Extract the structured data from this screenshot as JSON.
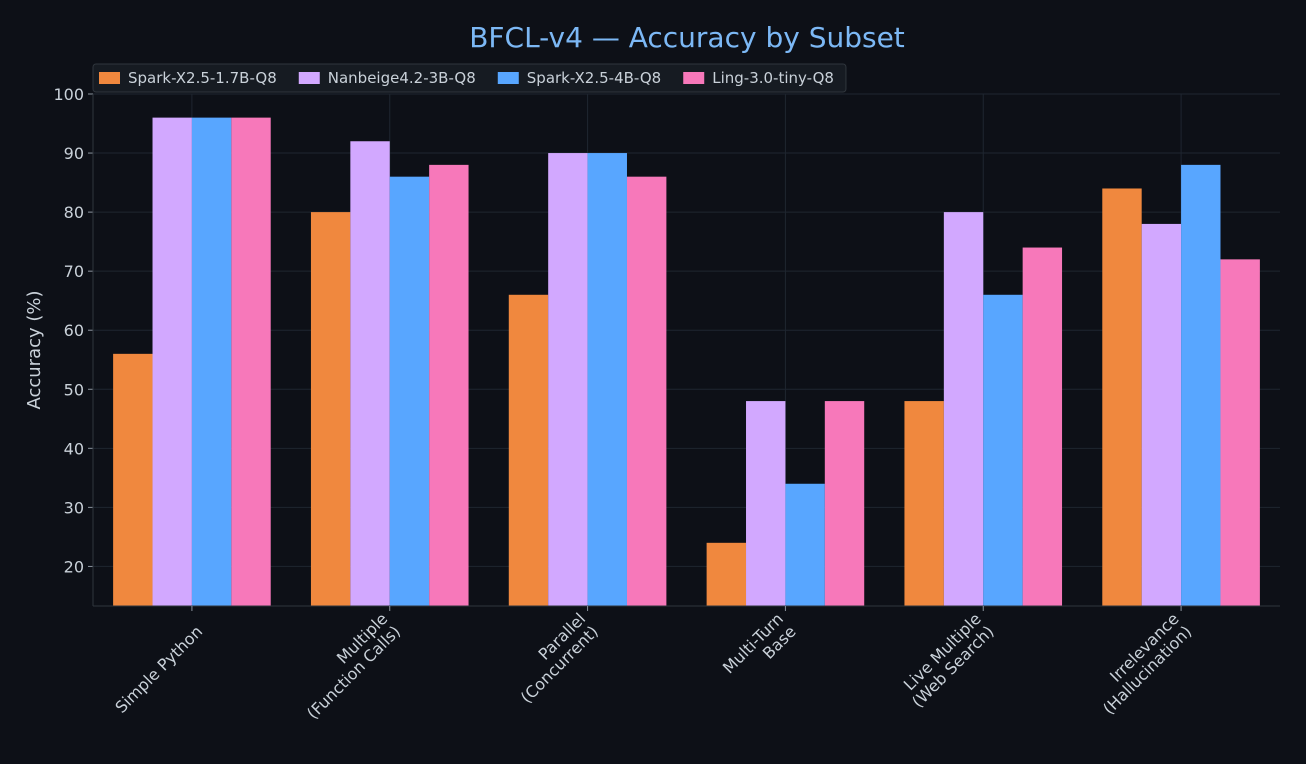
{
  "chart_data": {
    "type": "bar",
    "title": "BFCL-v4 — Accuracy by Subset",
    "xlabel": "",
    "ylabel": "Accuracy (%)",
    "ylim": [
      13.3,
      100
    ],
    "yticks": [
      20,
      30,
      40,
      50,
      60,
      70,
      80,
      90,
      100
    ],
    "grid": true,
    "legend_position": "top-left",
    "categories": [
      [
        "Simple Python"
      ],
      [
        "Multiple",
        "(Function Calls)"
      ],
      [
        "Parallel",
        "(Concurrent)"
      ],
      [
        "Multi-Turn",
        "Base"
      ],
      [
        "Live Multiple",
        "(Web Search)"
      ],
      [
        "Irrelevance",
        "(Hallucination)"
      ]
    ],
    "series": [
      {
        "name": "Spark-X2.5-1.7B-Q8",
        "color": "#f0883e",
        "values": [
          56,
          80,
          66,
          24,
          48,
          84
        ]
      },
      {
        "name": "Nanbeige4.2-3B-Q8",
        "color": "#d2a8ff",
        "values": [
          96,
          92,
          90,
          48,
          80,
          78
        ]
      },
      {
        "name": "Spark-X2.5-4B-Q8",
        "color": "#58a6ff",
        "values": [
          96,
          86,
          90,
          34,
          66,
          88
        ]
      },
      {
        "name": "Ling-3.0-tiny-Q8",
        "color": "#f778ba",
        "values": [
          96,
          88,
          86,
          48,
          74,
          72
        ]
      }
    ]
  }
}
